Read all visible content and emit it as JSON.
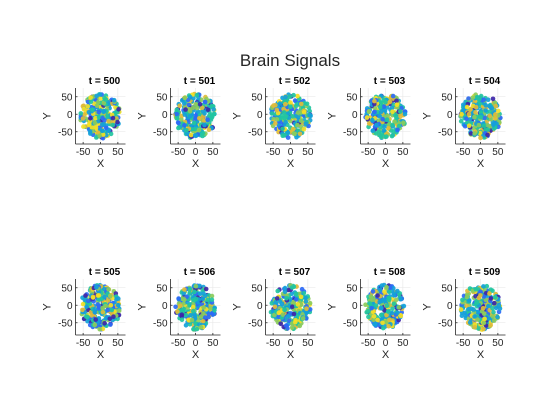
{
  "figure": {
    "title": "Brain Signals"
  },
  "chart_data": {
    "type": "scatter",
    "title": "Brain Signals",
    "xlabel": "X",
    "ylabel": "Y",
    "xlim": [
      -72,
      72
    ],
    "ylim": [
      -85,
      75
    ],
    "xticks": [
      -50,
      0,
      50
    ],
    "yticks": [
      50,
      0,
      -50
    ],
    "xtick_labels": [
      "-50",
      "0",
      "50"
    ],
    "ytick_labels": [
      "50",
      "0",
      "-50"
    ],
    "grid": true,
    "colormap": [
      "#3e26a8",
      "#2c6af6",
      "#14a1d9",
      "#22c5a0",
      "#8bcb5c",
      "#e0bb3a",
      "#f4e025"
    ],
    "panels": [
      {
        "title": "t = 500",
        "seed": 500
      },
      {
        "title": "t = 501",
        "seed": 501
      },
      {
        "title": "t = 502",
        "seed": 502
      },
      {
        "title": "t = 503",
        "seed": 503
      },
      {
        "title": "t = 504",
        "seed": 504
      },
      {
        "title": "t = 505",
        "seed": 505
      },
      {
        "title": "t = 506",
        "seed": 506
      },
      {
        "title": "t = 507",
        "seed": 507
      },
      {
        "title": "t = 508",
        "seed": 508
      },
      {
        "title": "t = 509",
        "seed": 509
      }
    ]
  }
}
